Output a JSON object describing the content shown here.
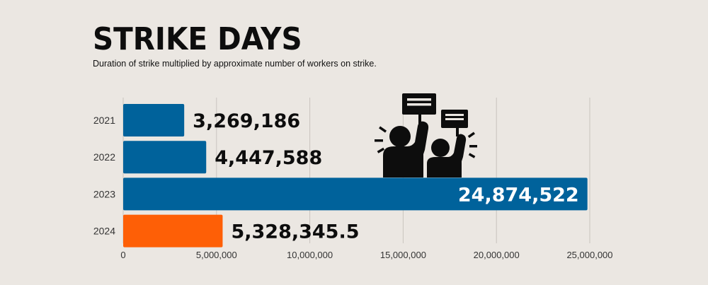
{
  "header": {
    "title": "STRIKE DAYS",
    "subtitle": "Duration of strike multiplied by approximate number of workers on strike."
  },
  "icon": "protesters-with-signs-icon",
  "colors": {
    "background": "#ebe7e2",
    "bar_blue": "#00629b",
    "bar_orange": "#fe5f06",
    "label_dark": "#0d0d0d",
    "label_light": "#ffffff",
    "grid": "#c9c4bf"
  },
  "chart_data": {
    "type": "bar",
    "orientation": "horizontal",
    "title": "STRIKE DAYS",
    "subtitle": "Duration of strike multiplied by approximate number of workers on strike.",
    "categories": [
      "2021",
      "2022",
      "2023",
      "2024"
    ],
    "values": [
      3269186,
      4447588,
      24874522,
      5328345.5
    ],
    "data_labels": [
      "3,269,186",
      "4,447,588",
      "24,874,522",
      "5,328,345.5"
    ],
    "bar_colors": [
      "#00629b",
      "#00629b",
      "#00629b",
      "#fe5f06"
    ],
    "xlim": [
      0,
      25000000
    ],
    "x_ticks": [
      0,
      5000000,
      10000000,
      15000000,
      20000000,
      25000000
    ],
    "x_tick_labels": [
      "0",
      "5,000,000",
      "10,000,000",
      "15,000,000",
      "20,000,000",
      "25,000,000"
    ],
    "grid": true,
    "legend": "none"
  }
}
